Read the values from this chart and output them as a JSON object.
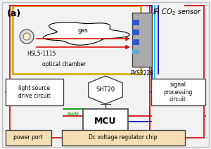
{
  "bg_color": "#f2f2f2",
  "label_a": "(a)",
  "title": "IR CO$_2$ sensor",
  "optical_chamber_label": "optical chamber",
  "gas_label": "gas",
  "hsl_label": "HSL5-1115",
  "pys_label": "PYS3228",
  "sht_label": "SHT20",
  "mcu_label": "MCU",
  "pwm_label": "PWM",
  "ls_label": "light source\ndrive circuit",
  "sig_label": "signal\nprocessing\ncircuit",
  "pp_label": "power port",
  "dc_label": "Dc voltage regulator chip",
  "RED": "#dd1111",
  "BLUE": "#1111cc",
  "CYAN": "#00ccdd",
  "GREEN": "#009900",
  "YELLOW": "#ccaa00",
  "DARK": "#444444",
  "BOX_LIGHT": "#f5deb3",
  "BOX_WHITE": "#ffffff",
  "GRAY": "#888888"
}
